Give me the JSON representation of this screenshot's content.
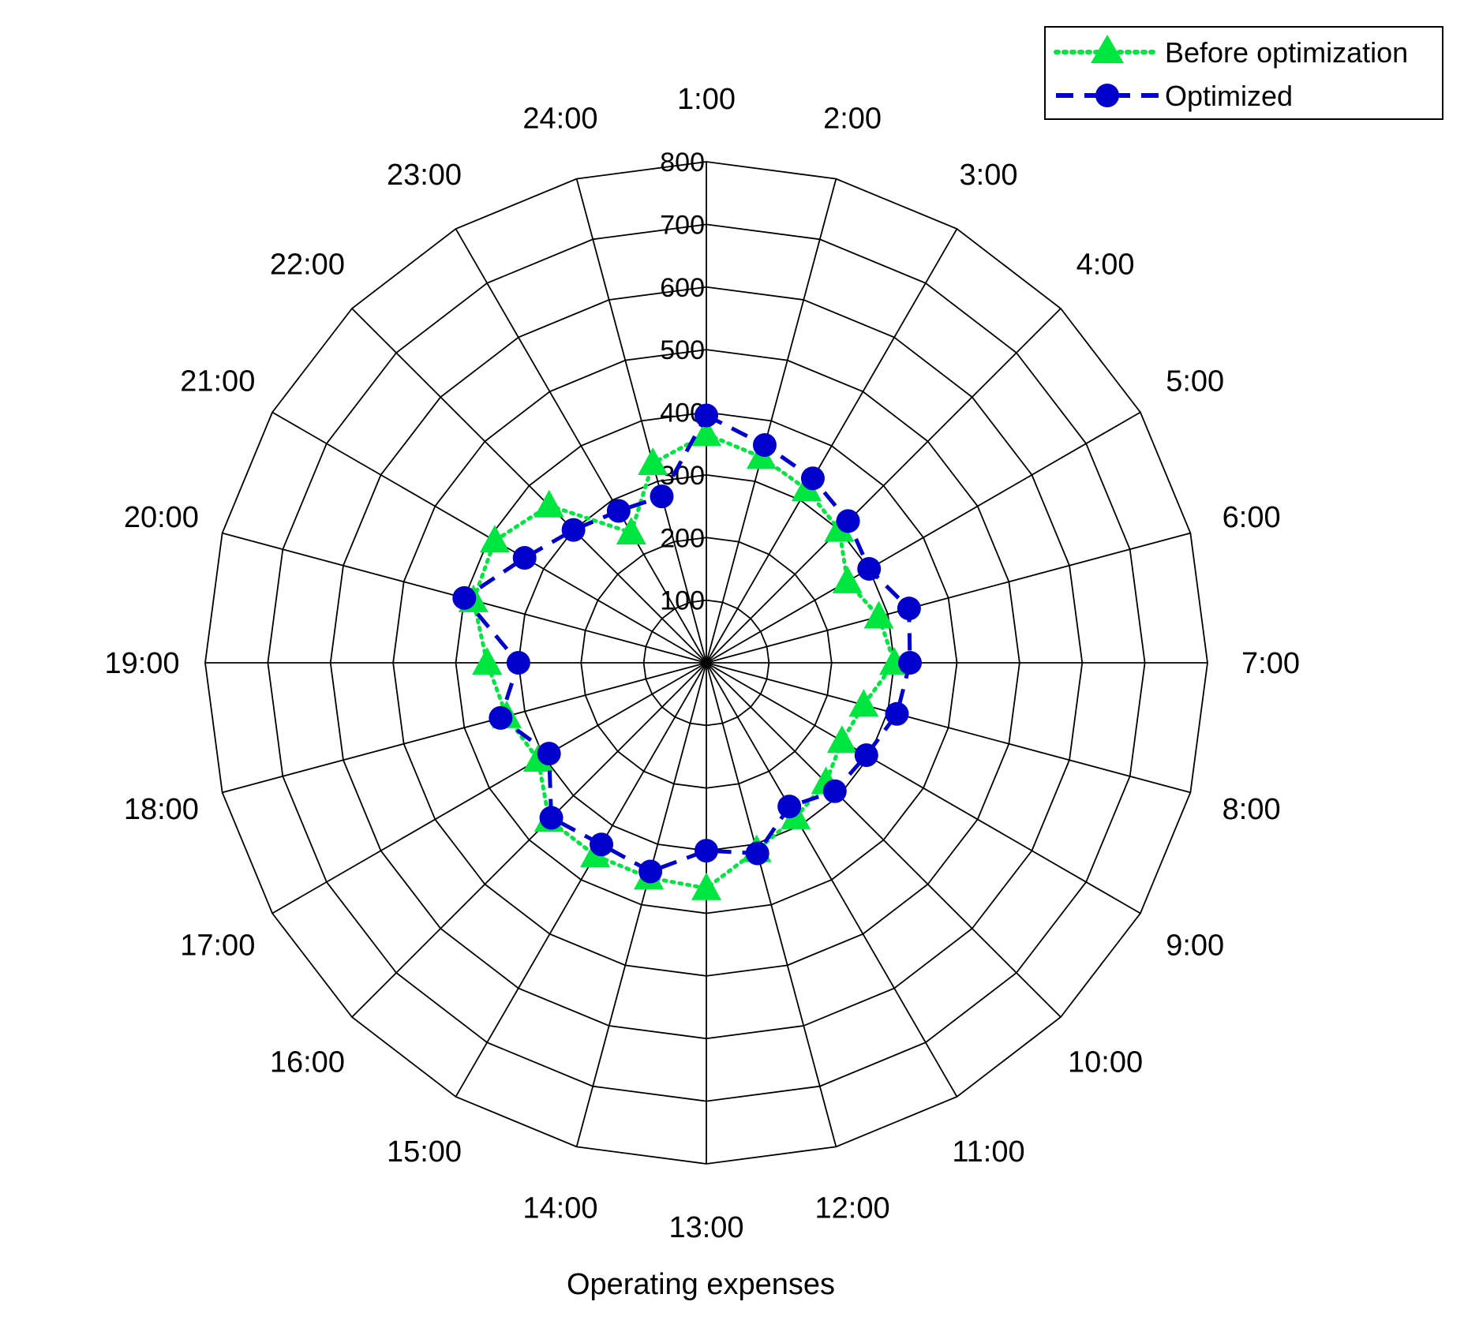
{
  "chart_data": {
    "type": "radar",
    "title": "",
    "xlabel": "Operating expenses",
    "categories": [
      "1:00",
      "2:00",
      "3:00",
      "4:00",
      "5:00",
      "6:00",
      "7:00",
      "8:00",
      "9:00",
      "10:00",
      "11:00",
      "12:00",
      "13:00",
      "14:00",
      "15:00",
      "16:00",
      "17:00",
      "18:00",
      "19:00",
      "20:00",
      "21:00",
      "22:00",
      "23:00",
      "24:00"
    ],
    "r_ticks": [
      "100",
      "200",
      "300",
      "400",
      "500",
      "600",
      "700",
      "800"
    ],
    "rlim": [
      0,
      800
    ],
    "grid": true,
    "legend_position": "top-right",
    "series": [
      {
        "name": "Before optimization",
        "color": "#00e640",
        "line_style": "dotted",
        "marker": "triangle",
        "values": [
          365,
          340,
          320,
          300,
          260,
          285,
          300,
          260,
          250,
          270,
          285,
          310,
          360,
          355,
          355,
          355,
          310,
          330,
          350,
          385,
          390,
          355,
          240,
          330
        ]
      },
      {
        "name": "Optimized",
        "color": "#0000cc",
        "line_style": "dashed",
        "marker": "circle",
        "values": [
          395,
          360,
          340,
          320,
          300,
          335,
          325,
          315,
          295,
          290,
          265,
          315,
          300,
          345,
          335,
          350,
          290,
          340,
          300,
          400,
          335,
          300,
          280,
          275
        ]
      }
    ]
  }
}
